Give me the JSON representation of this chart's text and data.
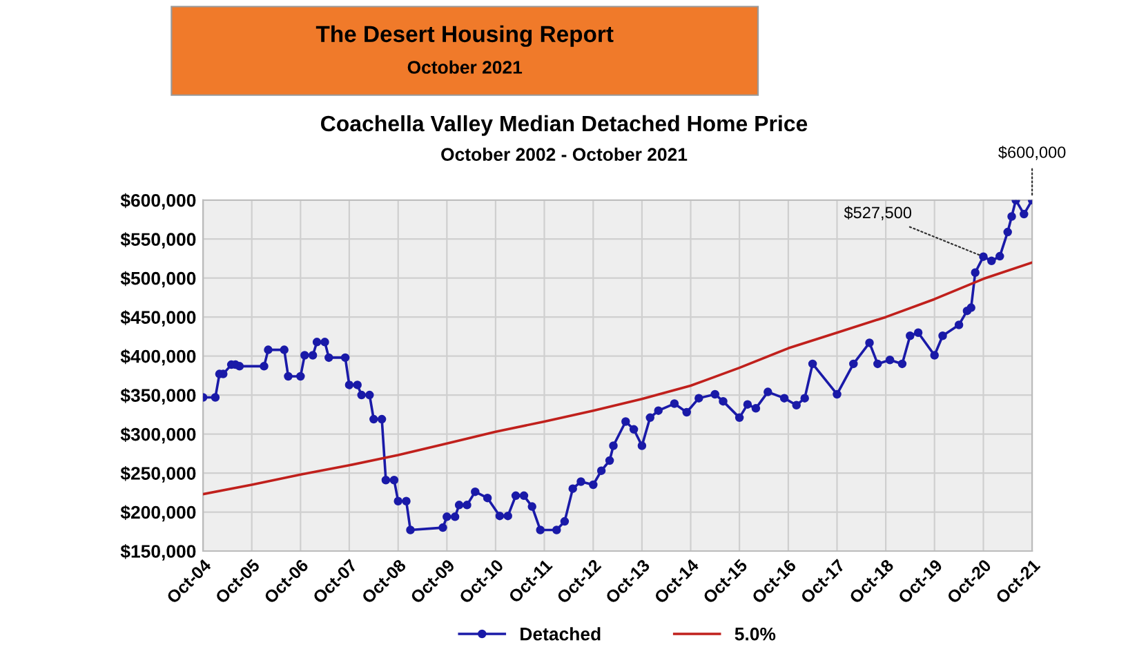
{
  "chart_data": {
    "type": "line",
    "title": "Coachella Valley Median Detached Home Price",
    "subtitle": "October 2002 - October 2021",
    "annotations": [
      "The Desert Housing Report",
      "October 2021",
      {
        "text": "$527,500",
        "x": "2020-10",
        "y": 527500
      },
      {
        "text": "$600,000",
        "x": "2021-10",
        "y": 600000
      }
    ],
    "series": [
      {
        "name": "Detached",
        "color": "#1a1aa8",
        "marker": "circle",
        "x": [
          "2004-10",
          "2005-01",
          "2005-02",
          "2005-03",
          "2005-05",
          "2005-06",
          "2005-07",
          "2006-01",
          "2006-02",
          "2006-06",
          "2006-07",
          "2006-10",
          "2006-11",
          "2007-01",
          "2007-02",
          "2007-04",
          "2007-05",
          "2007-09",
          "2007-10",
          "2007-12",
          "2008-01",
          "2008-03",
          "2008-04",
          "2008-06",
          "2008-07",
          "2008-09",
          "2008-10",
          "2008-12",
          "2009-01",
          "2009-09",
          "2009-10",
          "2009-12",
          "2010-01",
          "2010-03",
          "2010-05",
          "2010-08",
          "2010-11",
          "2011-01",
          "2011-03",
          "2011-05",
          "2011-07",
          "2011-09",
          "2012-01",
          "2012-03",
          "2012-05",
          "2012-07",
          "2012-10",
          "2012-12",
          "2013-02",
          "2013-03",
          "2013-06",
          "2013-08",
          "2013-10",
          "2013-12",
          "2014-02",
          "2014-06",
          "2014-09",
          "2014-12",
          "2015-04",
          "2015-06",
          "2015-10",
          "2015-12",
          "2016-02",
          "2016-05",
          "2016-09",
          "2016-12",
          "2017-02",
          "2017-04",
          "2017-10",
          "2018-02",
          "2018-06",
          "2018-08",
          "2018-11",
          "2019-02",
          "2019-04",
          "2019-06",
          "2019-10",
          "2019-12",
          "2020-04",
          "2020-06",
          "2020-07",
          "2020-08",
          "2020-10",
          "2020-12",
          "2021-02",
          "2021-04",
          "2021-05",
          "2021-06",
          "2021-08",
          "2021-10"
        ],
        "values": [
          347000,
          347000,
          377000,
          377000,
          389000,
          389000,
          387000,
          387000,
          408000,
          408000,
          374000,
          374000,
          401000,
          401000,
          418000,
          418000,
          398000,
          398000,
          363000,
          363000,
          350000,
          350000,
          319000,
          319000,
          241000,
          241000,
          214000,
          214000,
          177000,
          180000,
          194000,
          194000,
          209000,
          209000,
          226000,
          218000,
          195000,
          195000,
          221000,
          221000,
          207000,
          177000,
          177000,
          188000,
          230000,
          239000,
          235000,
          253000,
          266000,
          285000,
          316000,
          306000,
          285000,
          321000,
          330000,
          339000,
          328000,
          346000,
          351000,
          342000,
          321000,
          338000,
          333000,
          354000,
          346000,
          337000,
          346000,
          390000,
          351000,
          390000,
          417000,
          390000,
          395000,
          390000,
          426000,
          430000,
          401000,
          426000,
          440000,
          458000,
          462000,
          507000,
          527500,
          522000,
          528000,
          559000,
          579000,
          600000,
          582000,
          600000
        ]
      },
      {
        "name": "5.0%",
        "color": "#c0201c",
        "marker": "none",
        "x": [
          "2004-10",
          "2005-10",
          "2006-10",
          "2007-10",
          "2008-10",
          "2009-10",
          "2010-10",
          "2011-10",
          "2012-10",
          "2013-10",
          "2014-10",
          "2015-10",
          "2016-10",
          "2017-10",
          "2018-10",
          "2019-10",
          "2020-10",
          "2021-10"
        ],
        "values": [
          223000,
          235000,
          248000,
          260000,
          273000,
          288000,
          303000,
          316000,
          330000,
          345000,
          362000,
          385000,
          410000,
          430000,
          450000,
          473000,
          499000,
          520000
        ]
      }
    ],
    "xlim": [
      "2004-10",
      "2021-10"
    ],
    "xticks": [
      {
        "value": "2004-10",
        "label": "Oct-04"
      },
      {
        "value": "2005-10",
        "label": "Oct-05"
      },
      {
        "value": "2006-10",
        "label": "Oct-06"
      },
      {
        "value": "2007-10",
        "label": "Oct-07"
      },
      {
        "value": "2008-10",
        "label": "Oct-08"
      },
      {
        "value": "2009-10",
        "label": "Oct-09"
      },
      {
        "value": "2010-10",
        "label": "Oct-10"
      },
      {
        "value": "2011-10",
        "label": "Oct-11"
      },
      {
        "value": "2012-10",
        "label": "Oct-12"
      },
      {
        "value": "2013-10",
        "label": "Oct-13"
      },
      {
        "value": "2014-10",
        "label": "Oct-14"
      },
      {
        "value": "2015-10",
        "label": "Oct-15"
      },
      {
        "value": "2016-10",
        "label": "Oct-16"
      },
      {
        "value": "2017-10",
        "label": "Oct-17"
      },
      {
        "value": "2018-10",
        "label": "Oct-18"
      },
      {
        "value": "2019-10",
        "label": "Oct-19"
      },
      {
        "value": "2020-10",
        "label": "Oct-20"
      },
      {
        "value": "2021-10",
        "label": "Oct-21"
      }
    ],
    "ylim": [
      150000,
      600000
    ],
    "yticks": [
      {
        "value": 150000,
        "label": "$150,000"
      },
      {
        "value": 200000,
        "label": "$200,000"
      },
      {
        "value": 250000,
        "label": "$250,000"
      },
      {
        "value": 300000,
        "label": "$300,000"
      },
      {
        "value": 350000,
        "label": "$350,000"
      },
      {
        "value": 400000,
        "label": "$400,000"
      },
      {
        "value": 450000,
        "label": "$450,000"
      },
      {
        "value": 500000,
        "label": "$500,000"
      },
      {
        "value": 550000,
        "label": "$550,000"
      },
      {
        "value": 600000,
        "label": "$600,000"
      }
    ],
    "grid": true,
    "legend": "bottom",
    "line_style": "solid"
  }
}
